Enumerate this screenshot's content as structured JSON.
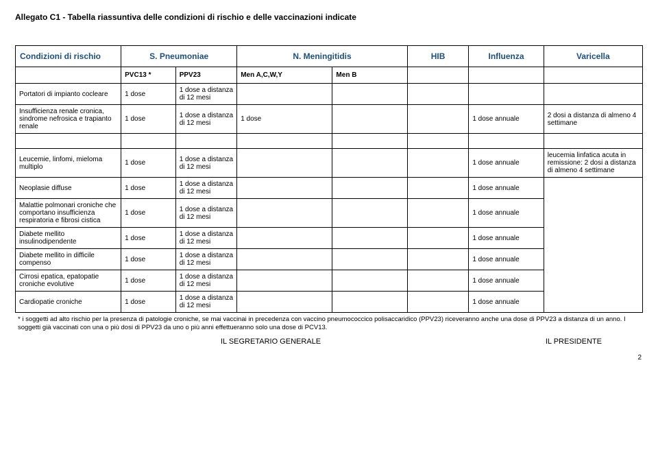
{
  "title": "Allegato C1 -  Tabella riassuntiva delle condizioni di rischio e delle vaccinazioni indicate",
  "header": {
    "condizioni": "Condizioni di rischio",
    "pneumoniae": "S. Pneumoniae",
    "meningitidis": "N. Meningitidis",
    "hib": "HIB",
    "influenza": "Influenza",
    "varicella": "Varicella"
  },
  "subheader": {
    "pvc13": "PVC13 *",
    "ppv23": "PPV23",
    "menACWY": "Men A,C,W,Y",
    "menB": "Men B"
  },
  "dose1": "1 dose",
  "dose1a12": "1 dose a distanza di 12 mesi",
  "dose_annuale": "1 dose annuale",
  "varicella_2dosi": "2 dosi a distanza di almeno 4 settimane",
  "varicella_leucemia": "leucemia linfatica acuta in remissione: 2 dosi a distanza di almeno 4 settimane",
  "rows": {
    "r1": "Portatori di impianto cocleare",
    "r2": "Insufficienza renale cronica, sindrome nefrosica e trapianto renale",
    "r3": "Leucemie, linfomi, mieloma multiplo",
    "r4": "Neoplasie diffuse",
    "r5": "Malattie polmonari croniche che comportano insufficienza respiratoria e fibrosi cistica",
    "r6": "Diabete mellito insulinodipendente",
    "r7": "Diabete mellito in difficile compenso",
    "r8": "Cirrosi epatica, epatopatie croniche evolutive",
    "r9": "Cardiopatie croniche"
  },
  "footnote": "* i soggetti ad alto rischio per la presenza di patologie croniche, se mai vaccinai in precedenza con vaccino pneumococcico polisaccaridico (PPV23) riceveranno  anche una dose di PPV23 a distanza di un anno. I soggetti già vaccinati con  una o più dosi di PPV23 da uno o più anni effettueranno solo una dose di PCV13.",
  "sig_left": "IL SEGRETARIO GENERALE",
  "sig_right": "IL PRESIDENTE",
  "page": "2"
}
